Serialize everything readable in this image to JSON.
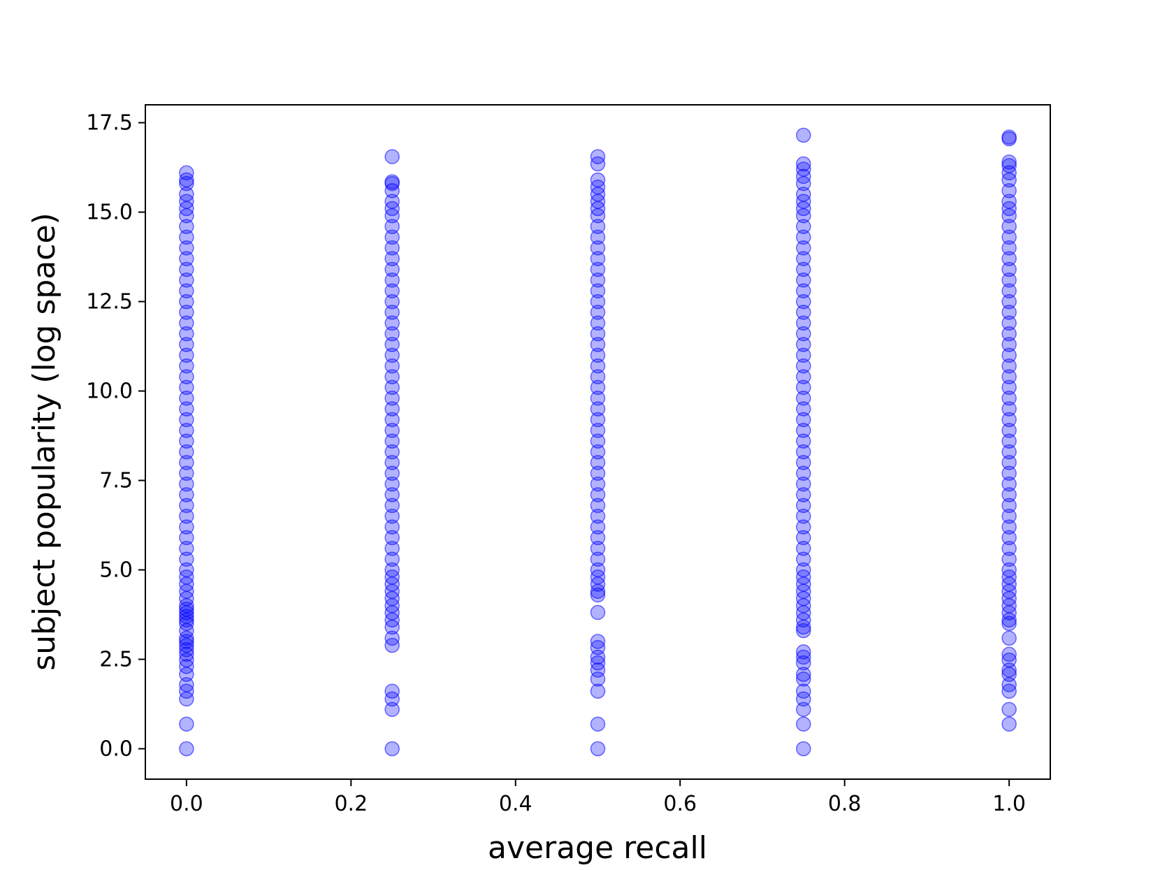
{
  "chart_data": {
    "type": "scatter",
    "title": "",
    "xlabel": "average recall",
    "ylabel": "subject popularity (log space)",
    "xlim": [
      -0.05,
      1.05
    ],
    "ylim": [
      -0.85,
      18.0
    ],
    "xticks": [
      0.0,
      0.2,
      0.4,
      0.6,
      0.8,
      1.0
    ],
    "xtick_labels": [
      "0.0",
      "0.2",
      "0.4",
      "0.6",
      "0.8",
      "1.0"
    ],
    "yticks": [
      0.0,
      2.5,
      5.0,
      7.5,
      10.0,
      12.5,
      15.0,
      17.5
    ],
    "ytick_labels": [
      "0.0",
      "2.5",
      "5.0",
      "7.5",
      "10.0",
      "12.5",
      "15.0",
      "17.5"
    ],
    "grid": false,
    "legend": false,
    "marker_color": "#0000ff",
    "marker_alpha": 0.3,
    "series": [
      {
        "x": 0.0,
        "y": [
          0.0,
          0.69,
          1.39,
          1.61,
          1.79,
          2.08,
          2.3,
          2.48,
          2.64,
          2.77,
          2.89,
          3.0,
          3.09,
          3.3,
          3.5,
          3.6,
          3.7,
          3.8,
          3.9,
          4.0,
          4.2,
          4.4,
          4.6,
          4.8,
          5.0,
          5.3,
          5.6,
          5.9,
          6.2,
          6.5,
          6.8,
          7.1,
          7.4,
          7.7,
          8.0,
          8.3,
          8.6,
          8.9,
          9.2,
          9.5,
          9.8,
          10.1,
          10.4,
          10.7,
          11.0,
          11.3,
          11.6,
          11.9,
          12.2,
          12.5,
          12.8,
          13.1,
          13.4,
          13.7,
          14.0,
          14.3,
          14.6,
          14.9,
          15.1,
          15.3,
          15.5,
          15.8,
          15.9,
          16.1
        ]
      },
      {
        "x": 0.25,
        "y": [
          0.0,
          1.1,
          1.39,
          1.61,
          2.89,
          3.09,
          3.4,
          3.6,
          3.8,
          4.0,
          4.2,
          4.4,
          4.6,
          4.8,
          5.0,
          5.3,
          5.6,
          5.9,
          6.2,
          6.5,
          6.8,
          7.1,
          7.4,
          7.7,
          8.0,
          8.3,
          8.6,
          8.9,
          9.2,
          9.5,
          9.8,
          10.1,
          10.4,
          10.7,
          11.0,
          11.3,
          11.6,
          11.9,
          12.2,
          12.5,
          12.8,
          13.1,
          13.4,
          13.7,
          14.0,
          14.3,
          14.6,
          14.9,
          15.1,
          15.3,
          15.6,
          15.8,
          15.85,
          16.55
        ]
      },
      {
        "x": 0.5,
        "y": [
          0.0,
          0.69,
          1.61,
          1.95,
          2.2,
          2.4,
          2.56,
          2.83,
          3.0,
          3.81,
          4.3,
          4.4,
          4.6,
          4.8,
          5.0,
          5.3,
          5.6,
          5.9,
          6.2,
          6.5,
          6.8,
          7.1,
          7.4,
          7.7,
          8.0,
          8.3,
          8.6,
          8.9,
          9.2,
          9.5,
          9.8,
          10.1,
          10.4,
          10.7,
          11.0,
          11.3,
          11.6,
          11.9,
          12.2,
          12.5,
          12.8,
          13.1,
          13.4,
          13.7,
          14.0,
          14.3,
          14.6,
          14.9,
          15.1,
          15.3,
          15.5,
          15.7,
          15.9,
          16.35,
          16.55
        ]
      },
      {
        "x": 0.75,
        "y": [
          0.0,
          0.69,
          1.1,
          1.39,
          1.61,
          1.95,
          2.08,
          2.4,
          2.56,
          2.71,
          3.3,
          3.4,
          3.6,
          3.8,
          4.0,
          4.2,
          4.4,
          4.6,
          4.8,
          5.0,
          5.3,
          5.6,
          5.9,
          6.2,
          6.5,
          6.8,
          7.1,
          7.4,
          7.7,
          8.0,
          8.3,
          8.6,
          8.9,
          9.2,
          9.5,
          9.8,
          10.1,
          10.4,
          10.7,
          11.0,
          11.3,
          11.6,
          11.9,
          12.2,
          12.5,
          12.8,
          13.1,
          13.4,
          13.7,
          14.0,
          14.3,
          14.6,
          14.9,
          15.1,
          15.3,
          15.5,
          15.8,
          16.0,
          16.2,
          16.35,
          17.15
        ]
      },
      {
        "x": 1.0,
        "y": [
          0.69,
          1.1,
          1.61,
          1.79,
          2.08,
          2.2,
          2.48,
          2.64,
          3.09,
          3.5,
          3.6,
          3.8,
          4.0,
          4.2,
          4.4,
          4.6,
          4.8,
          5.0,
          5.3,
          5.6,
          5.9,
          6.2,
          6.5,
          6.8,
          7.1,
          7.4,
          7.7,
          8.0,
          8.3,
          8.6,
          8.9,
          9.2,
          9.5,
          9.8,
          10.1,
          10.4,
          10.7,
          11.0,
          11.3,
          11.6,
          11.9,
          12.2,
          12.5,
          12.8,
          13.1,
          13.4,
          13.7,
          14.0,
          14.3,
          14.6,
          14.9,
          15.1,
          15.3,
          15.6,
          15.9,
          16.1,
          16.3,
          16.4,
          17.05,
          17.1
        ]
      }
    ]
  }
}
